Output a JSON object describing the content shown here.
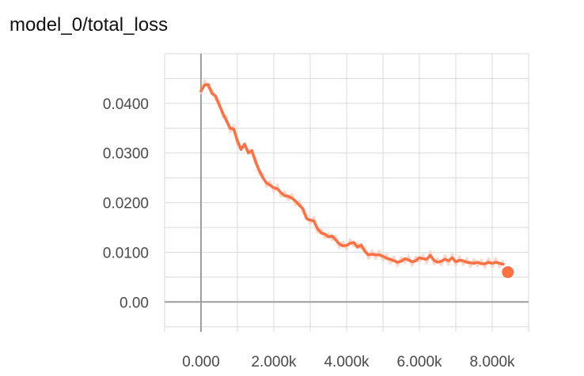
{
  "chart_data": {
    "type": "line",
    "title": "model_0/total_loss",
    "xlabel": "",
    "ylabel": "",
    "xlim": [
      -1000,
      9000
    ],
    "ylim": [
      -0.006,
      0.05
    ],
    "x_ticks": [
      {
        "value": 0,
        "label": "0.000"
      },
      {
        "value": 2000,
        "label": "2.000k"
      },
      {
        "value": 4000,
        "label": "4.000k"
      },
      {
        "value": 6000,
        "label": "6.000k"
      },
      {
        "value": 8000,
        "label": "8.000k"
      }
    ],
    "y_ticks": [
      {
        "value": 0,
        "label": "0.00"
      },
      {
        "value": 0.01,
        "label": "0.0100"
      },
      {
        "value": 0.02,
        "label": "0.0200"
      },
      {
        "value": 0.03,
        "label": "0.0300"
      },
      {
        "value": 0.04,
        "label": "0.0400"
      }
    ],
    "grid": true,
    "series": [
      {
        "color": "#ff7043",
        "raw_color": "#fbd0c3",
        "points": [
          [
            0,
            0.0425
          ],
          [
            100,
            0.0437
          ],
          [
            200,
            0.0438
          ],
          [
            300,
            0.042
          ],
          [
            400,
            0.0415
          ],
          [
            500,
            0.0397
          ],
          [
            600,
            0.038
          ],
          [
            700,
            0.0365
          ],
          [
            800,
            0.035
          ],
          [
            900,
            0.0348
          ],
          [
            1000,
            0.0325
          ],
          [
            1100,
            0.0307
          ],
          [
            1200,
            0.0318
          ],
          [
            1300,
            0.03
          ],
          [
            1400,
            0.0305
          ],
          [
            1500,
            0.0282
          ],
          [
            1600,
            0.0265
          ],
          [
            1700,
            0.025
          ],
          [
            1800,
            0.024
          ],
          [
            1900,
            0.0235
          ],
          [
            2000,
            0.023
          ],
          [
            2100,
            0.0228
          ],
          [
            2200,
            0.022
          ],
          [
            2300,
            0.0214
          ],
          [
            2400,
            0.0213
          ],
          [
            2500,
            0.0209
          ],
          [
            2600,
            0.0203
          ],
          [
            2700,
            0.0195
          ],
          [
            2800,
            0.0188
          ],
          [
            2900,
            0.0168
          ],
          [
            3000,
            0.0165
          ],
          [
            3100,
            0.0163
          ],
          [
            3200,
            0.0148
          ],
          [
            3300,
            0.0139
          ],
          [
            3400,
            0.0137
          ],
          [
            3500,
            0.0131
          ],
          [
            3600,
            0.0133
          ],
          [
            3700,
            0.0125
          ],
          [
            3800,
            0.0117
          ],
          [
            3900,
            0.0113
          ],
          [
            4000,
            0.0114
          ],
          [
            4100,
            0.0118
          ],
          [
            4200,
            0.012
          ],
          [
            4300,
            0.011
          ],
          [
            4400,
            0.0115
          ],
          [
            4500,
            0.0102
          ],
          [
            4600,
            0.0095
          ],
          [
            4700,
            0.0096
          ],
          [
            4800,
            0.0095
          ],
          [
            4900,
            0.0095
          ],
          [
            5000,
            0.0092
          ],
          [
            5100,
            0.0088
          ],
          [
            5200,
            0.0086
          ],
          [
            5300,
            0.0083
          ],
          [
            5400,
            0.008
          ],
          [
            5500,
            0.0082
          ],
          [
            5600,
            0.0087
          ],
          [
            5700,
            0.0085
          ],
          [
            5800,
            0.0081
          ],
          [
            5900,
            0.0083
          ],
          [
            6000,
            0.0089
          ],
          [
            6100,
            0.0087
          ],
          [
            6200,
            0.0086
          ],
          [
            6300,
            0.0094
          ],
          [
            6400,
            0.0084
          ],
          [
            6500,
            0.008
          ],
          [
            6600,
            0.0082
          ],
          [
            6700,
            0.0086
          ],
          [
            6800,
            0.0083
          ],
          [
            6900,
            0.0089
          ],
          [
            7000,
            0.0081
          ],
          [
            7100,
            0.0084
          ],
          [
            7200,
            0.0083
          ],
          [
            7300,
            0.008
          ],
          [
            7400,
            0.0079
          ],
          [
            7500,
            0.0078
          ],
          [
            7600,
            0.008
          ],
          [
            7700,
            0.0077
          ],
          [
            7800,
            0.0077
          ],
          [
            7900,
            0.008
          ],
          [
            8000,
            0.0078
          ],
          [
            8100,
            0.008
          ],
          [
            8200,
            0.0078
          ],
          [
            8300,
            0.0076
          ]
        ],
        "raw_points": [
          [
            0,
            0.0418
          ],
          [
            100,
            0.0446
          ],
          [
            200,
            0.0431
          ],
          [
            300,
            0.0428
          ],
          [
            400,
            0.0407
          ],
          [
            500,
            0.0405
          ],
          [
            600,
            0.0372
          ],
          [
            700,
            0.0373
          ],
          [
            800,
            0.0342
          ],
          [
            900,
            0.0356
          ],
          [
            1000,
            0.0317
          ],
          [
            1100,
            0.0314
          ],
          [
            1200,
            0.0311
          ],
          [
            1300,
            0.0308
          ],
          [
            1400,
            0.0297
          ],
          [
            1500,
            0.029
          ],
          [
            1600,
            0.0257
          ],
          [
            1700,
            0.0258
          ],
          [
            1800,
            0.0232
          ],
          [
            1900,
            0.0243
          ],
          [
            2000,
            0.0222
          ],
          [
            2100,
            0.0236
          ],
          [
            2200,
            0.0212
          ],
          [
            2300,
            0.0222
          ],
          [
            2400,
            0.0205
          ],
          [
            2500,
            0.0217
          ],
          [
            2600,
            0.0195
          ],
          [
            2700,
            0.0203
          ],
          [
            2800,
            0.018
          ],
          [
            2900,
            0.0176
          ],
          [
            3000,
            0.0157
          ],
          [
            3100,
            0.0171
          ],
          [
            3200,
            0.014
          ],
          [
            3300,
            0.0147
          ],
          [
            3400,
            0.0129
          ],
          [
            3500,
            0.0139
          ],
          [
            3600,
            0.0125
          ],
          [
            3700,
            0.0133
          ],
          [
            3800,
            0.0109
          ],
          [
            3900,
            0.0121
          ],
          [
            4000,
            0.0106
          ],
          [
            4100,
            0.0126
          ],
          [
            4200,
            0.0112
          ],
          [
            4300,
            0.0118
          ],
          [
            4400,
            0.0107
          ],
          [
            4500,
            0.011
          ],
          [
            4600,
            0.0087
          ],
          [
            4700,
            0.0104
          ],
          [
            4800,
            0.0087
          ],
          [
            4900,
            0.0103
          ],
          [
            5000,
            0.0084
          ],
          [
            5100,
            0.0096
          ],
          [
            5200,
            0.0078
          ],
          [
            5300,
            0.0091
          ],
          [
            5400,
            0.0072
          ],
          [
            5500,
            0.009
          ],
          [
            5600,
            0.0079
          ],
          [
            5700,
            0.0093
          ],
          [
            5800,
            0.0073
          ],
          [
            5900,
            0.0091
          ],
          [
            6000,
            0.0081
          ],
          [
            6100,
            0.0095
          ],
          [
            6200,
            0.0078
          ],
          [
            6300,
            0.0102
          ],
          [
            6400,
            0.0076
          ],
          [
            6500,
            0.0088
          ],
          [
            6600,
            0.0074
          ],
          [
            6700,
            0.0094
          ],
          [
            6800,
            0.0075
          ],
          [
            6900,
            0.0097
          ],
          [
            7000,
            0.0073
          ],
          [
            7100,
            0.0092
          ],
          [
            7200,
            0.0075
          ],
          [
            7300,
            0.0088
          ],
          [
            7400,
            0.0071
          ],
          [
            7500,
            0.0086
          ],
          [
            7600,
            0.0072
          ],
          [
            7700,
            0.0085
          ],
          [
            7800,
            0.0069
          ],
          [
            7900,
            0.0088
          ],
          [
            8000,
            0.007
          ],
          [
            8100,
            0.0088
          ],
          [
            8200,
            0.007
          ],
          [
            8300,
            0.0084
          ]
        ],
        "last_point": [
          8300,
          0.0076
        ]
      }
    ]
  }
}
